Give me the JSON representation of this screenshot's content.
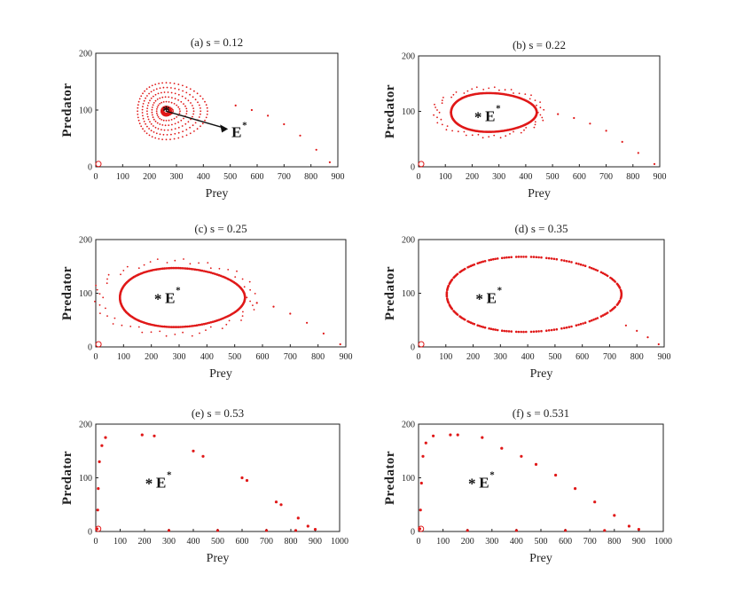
{
  "figure_caption_hidden": "",
  "chart_data": [
    {
      "type": "scatter",
      "title": "(a) s = 0.12",
      "xlabel": "Prey",
      "ylabel": "Predator",
      "xlim": [
        0,
        900
      ],
      "ylim": [
        0,
        200
      ],
      "xticks": [
        0,
        100,
        200,
        300,
        400,
        500,
        600,
        700,
        800,
        900
      ],
      "yticks": [
        0,
        100,
        200
      ],
      "equilibrium": {
        "x": 262,
        "y": 98
      },
      "annotation": {
        "text": "E",
        "sup": "*",
        "style": "arrow",
        "label_at": {
          "x": 505,
          "y": 62
        }
      },
      "orbit": {
        "kind": "spiral",
        "cx": 262,
        "cy": 98,
        "rx": 130,
        "ry": 50,
        "turns": 6
      },
      "trajectory_points": [
        [
          870,
          8
        ],
        [
          820,
          30
        ],
        [
          760,
          55
        ],
        [
          700,
          75
        ],
        [
          640,
          90
        ],
        [
          580,
          100
        ],
        [
          520,
          108
        ]
      ],
      "boundary_point": {
        "x": 10,
        "y": 5
      }
    },
    {
      "type": "scatter",
      "title": "(b) s = 0.22",
      "xlabel": "Prey",
      "ylabel": "Predator",
      "xlim": [
        0,
        900
      ],
      "ylim": [
        0,
        200
      ],
      "xticks": [
        0,
        100,
        200,
        300,
        400,
        500,
        600,
        700,
        800,
        900
      ],
      "yticks": [
        0,
        100,
        200
      ],
      "equilibrium": {
        "x": 262,
        "y": 98
      },
      "annotation": {
        "text": "E",
        "sup": "*",
        "style": "inside",
        "label_at": {
          "x": 262,
          "y": 95
        }
      },
      "orbit": {
        "kind": "limit-cycle",
        "cx": 262,
        "cy": 98,
        "rx": 160,
        "ry": 35
      },
      "trajectory_points": [
        [
          880,
          5
        ],
        [
          820,
          25
        ],
        [
          760,
          45
        ],
        [
          700,
          65
        ],
        [
          640,
          78
        ],
        [
          580,
          88
        ],
        [
          520,
          95
        ]
      ],
      "boundary_point": {
        "x": 10,
        "y": 5
      }
    },
    {
      "type": "scatter",
      "title": "(c) s = 0.25",
      "xlabel": "Prey",
      "ylabel": "Predator",
      "xlim": [
        0,
        900
      ],
      "ylim": [
        0,
        200
      ],
      "xticks": [
        0,
        100,
        200,
        300,
        400,
        500,
        600,
        700,
        800,
        900
      ],
      "yticks": [
        0,
        100,
        200
      ],
      "equilibrium": {
        "x": 262,
        "y": 98
      },
      "annotation": {
        "text": "E",
        "sup": "*",
        "style": "inside",
        "label_at": {
          "x": 262,
          "y": 95
        }
      },
      "orbit": {
        "kind": "limit-cycle",
        "cx": 285,
        "cy": 92,
        "rx": 225,
        "ry": 55
      },
      "trajectory_points": [
        [
          880,
          5
        ],
        [
          820,
          25
        ],
        [
          760,
          45
        ],
        [
          700,
          62
        ],
        [
          640,
          75
        ],
        [
          580,
          82
        ]
      ],
      "boundary_point": {
        "x": 10,
        "y": 5
      }
    },
    {
      "type": "scatter",
      "title": "(d) s = 0.35",
      "xlabel": "Prey",
      "ylabel": "Predator",
      "xlim": [
        0,
        900
      ],
      "ylim": [
        0,
        200
      ],
      "xticks": [
        0,
        100,
        200,
        300,
        400,
        500,
        600,
        700,
        800,
        900
      ],
      "yticks": [
        0,
        100,
        200
      ],
      "equilibrium": {
        "x": 262,
        "y": 98
      },
      "annotation": {
        "text": "E",
        "sup": "*",
        "style": "inside",
        "label_at": {
          "x": 262,
          "y": 95
        }
      },
      "orbit": {
        "kind": "limit-cycle",
        "cx": 385,
        "cy": 98,
        "rx": 320,
        "ry": 70
      },
      "trajectory_points": [
        [
          880,
          5
        ],
        [
          840,
          18
        ],
        [
          800,
          30
        ],
        [
          760,
          40
        ]
      ],
      "boundary_point": {
        "x": 10,
        "y": 5
      }
    },
    {
      "type": "scatter",
      "title": "(e) s = 0.53",
      "xlabel": "Prey",
      "ylabel": "Predator",
      "xlim": [
        0,
        1000
      ],
      "ylim": [
        0,
        200
      ],
      "xticks": [
        0,
        100,
        200,
        300,
        400,
        500,
        600,
        700,
        800,
        900,
        1000
      ],
      "yticks": [
        0,
        100,
        200
      ],
      "equilibrium": {
        "x": 262,
        "y": 98
      },
      "annotation": {
        "text": "E",
        "sup": "*",
        "style": "inside",
        "label_at": {
          "x": 262,
          "y": 95
        }
      },
      "orbit": {
        "kind": "heteroclinic"
      },
      "trajectory_points": [
        [
          5,
          5
        ],
        [
          8,
          40
        ],
        [
          10,
          80
        ],
        [
          15,
          130
        ],
        [
          25,
          160
        ],
        [
          40,
          175
        ],
        [
          190,
          180
        ],
        [
          240,
          178
        ],
        [
          400,
          150
        ],
        [
          440,
          140
        ],
        [
          600,
          100
        ],
        [
          620,
          95
        ],
        [
          740,
          55
        ],
        [
          760,
          50
        ],
        [
          830,
          25
        ],
        [
          870,
          10
        ],
        [
          900,
          4
        ],
        [
          300,
          2
        ],
        [
          500,
          2
        ],
        [
          700,
          2
        ],
        [
          820,
          2
        ]
      ],
      "boundary_point": {
        "x": 10,
        "y": 5
      }
    },
    {
      "type": "scatter",
      "title": "(f) s = 0.531",
      "xlabel": "Prey",
      "ylabel": "Predator",
      "xlim": [
        0,
        1000
      ],
      "ylim": [
        0,
        200
      ],
      "xticks": [
        0,
        100,
        200,
        300,
        400,
        500,
        600,
        700,
        800,
        900,
        1000
      ],
      "yticks": [
        0,
        100,
        200
      ],
      "equilibrium": {
        "x": 262,
        "y": 98
      },
      "annotation": {
        "text": "E",
        "sup": "*",
        "style": "inside",
        "label_at": {
          "x": 262,
          "y": 95
        }
      },
      "orbit": {
        "kind": "heteroclinic"
      },
      "trajectory_points": [
        [
          5,
          5
        ],
        [
          8,
          40
        ],
        [
          12,
          90
        ],
        [
          18,
          140
        ],
        [
          30,
          165
        ],
        [
          60,
          178
        ],
        [
          130,
          180
        ],
        [
          160,
          180
        ],
        [
          260,
          175
        ],
        [
          340,
          155
        ],
        [
          420,
          140
        ],
        [
          480,
          125
        ],
        [
          560,
          105
        ],
        [
          640,
          80
        ],
        [
          720,
          55
        ],
        [
          800,
          30
        ],
        [
          860,
          10
        ],
        [
          900,
          4
        ],
        [
          200,
          2
        ],
        [
          400,
          2
        ],
        [
          600,
          2
        ],
        [
          760,
          2
        ]
      ],
      "boundary_point": {
        "x": 10,
        "y": 5
      }
    }
  ]
}
